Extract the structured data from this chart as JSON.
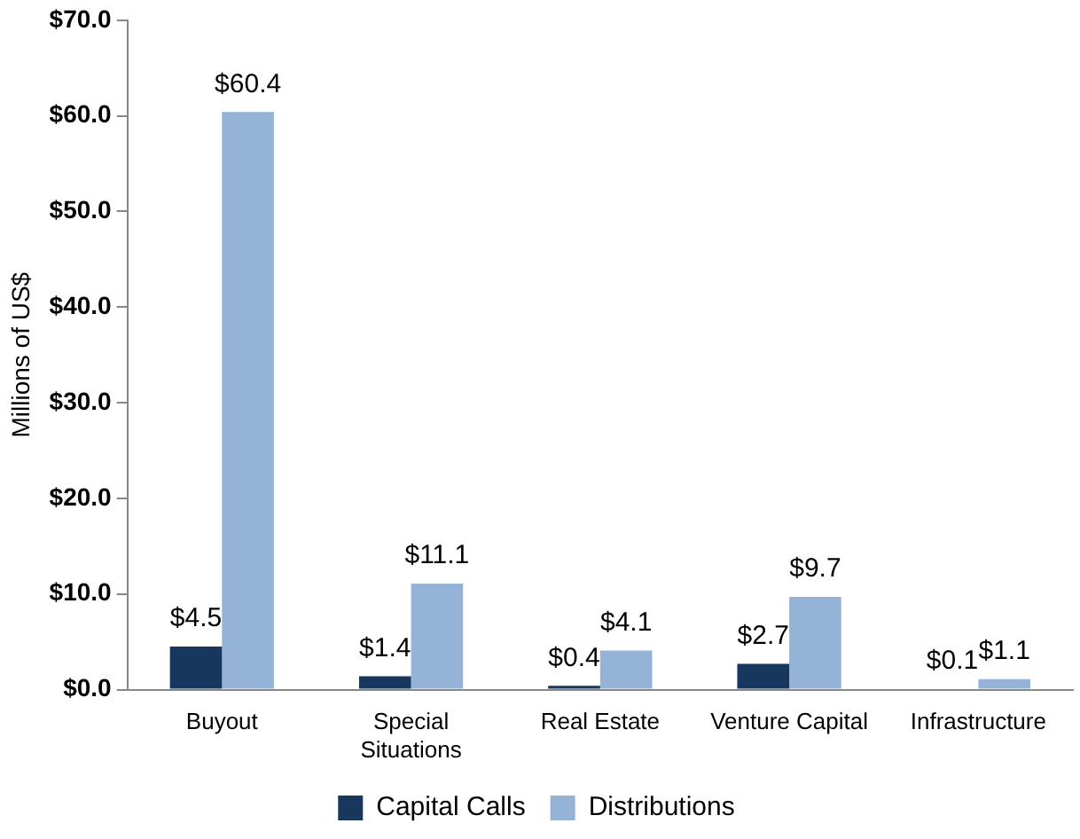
{
  "chart_data": {
    "type": "bar",
    "ylabel": "Millions of US$",
    "categories": [
      "Buyout",
      "Special Situations",
      "Real Estate",
      "Venture Capital",
      "Infrastructure"
    ],
    "series": [
      {
        "name": "Capital Calls",
        "color": "#17375e",
        "values": [
          4.5,
          1.4,
          0.4,
          2.7,
          0.1
        ],
        "value_labels": [
          "$4.5",
          "$1.4",
          "$0.4",
          "$2.7",
          "$0.1"
        ]
      },
      {
        "name": "Distributions",
        "color": "#95b3d7",
        "values": [
          60.4,
          11.1,
          4.1,
          9.7,
          1.1
        ],
        "value_labels": [
          "$60.4",
          "$11.1",
          "$4.1",
          "$9.7",
          "$1.1"
        ]
      }
    ],
    "ylim": [
      0,
      70
    ],
    "yticks": [
      {
        "value": 0,
        "label": "$0.0"
      },
      {
        "value": 10,
        "label": "$10.0"
      },
      {
        "value": 20,
        "label": "$20.0"
      },
      {
        "value": 30,
        "label": "$30.0"
      },
      {
        "value": 40,
        "label": "$40.0"
      },
      {
        "value": 50,
        "label": "$50.0"
      },
      {
        "value": 60,
        "label": "$60.0"
      },
      {
        "value": 70,
        "label": "$70.0"
      }
    ],
    "grid": false,
    "legend": "bottom"
  }
}
